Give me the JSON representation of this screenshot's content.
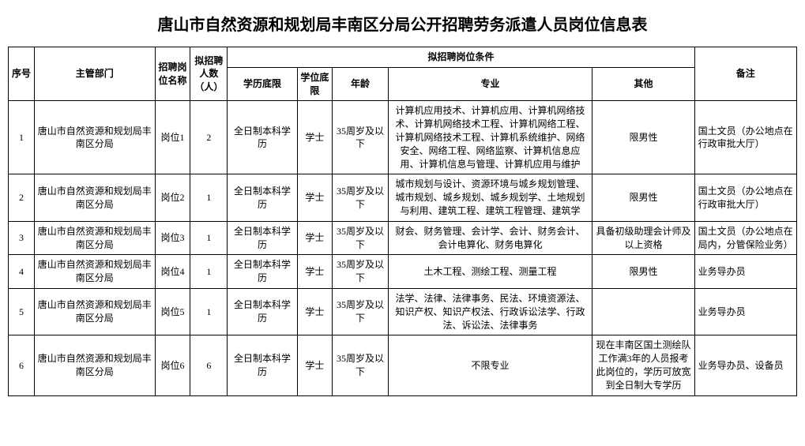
{
  "title": "唐山市自然资源和规划局丰南区分局公开招聘劳务派遣人员岗位信息表",
  "headers": {
    "seq": "序号",
    "dept": "主管部门",
    "position": "招聘岗位名称",
    "count": "拟招聘人数（人）",
    "condGroup": "拟招聘岗位条件",
    "edu": "学历底限",
    "degree": "学位底限",
    "age": "年龄",
    "major": "专业",
    "other": "其他",
    "remark": "备注"
  },
  "rows": [
    {
      "seq": "1",
      "dept": "唐山市自然资源和规划局丰南区分局",
      "position": "岗位1",
      "count": "2",
      "edu": "全日制本科学历",
      "degree": "学士",
      "age": "35周岁及以下",
      "major": "计算机应用技术、计算机应用、计算机网络技术、计算机网络技术工程、计算机网络工程、计算机网络技术工程、计算机系统维护、网络安全、网络工程、网络监察、计算机信息应用、计算机信息与管理、计算机应用与维护",
      "other": "限男性",
      "remark": "国土文员（办公地点在行政审批大厅）"
    },
    {
      "seq": "2",
      "dept": "唐山市自然资源和规划局丰南区分局",
      "position": "岗位2",
      "count": "1",
      "edu": "全日制本科学历",
      "degree": "学士",
      "age": "35周岁及以下",
      "major": "城市规划与设计、资源环境与城乡规划管理、城市规划、城乡规划、城乡规划学、土地规划与利用、建筑工程、建筑工程管理、建筑学",
      "other": "限男性",
      "remark": "国土文员（办公地点在行政审批大厅）"
    },
    {
      "seq": "3",
      "dept": "唐山市自然资源和规划局丰南区分局",
      "position": "岗位3",
      "count": "1",
      "edu": "全日制本科学历",
      "degree": "学士",
      "age": "35周岁及以下",
      "major": "财会、财务管理、会计学、会计、财务会计、会计电算化、财务电算化",
      "other": "具备初级助理会计师及以上资格",
      "remark": "国土文员（办公地点在局内，分管保险业务）"
    },
    {
      "seq": "4",
      "dept": "唐山市自然资源和规划局丰南区分局",
      "position": "岗位4",
      "count": "1",
      "edu": "全日制本科学历",
      "degree": "学士",
      "age": "35周岁及以下",
      "major": "土木工程、测绘工程、测量工程",
      "other": "限男性",
      "remark": "业务导办员"
    },
    {
      "seq": "5",
      "dept": "唐山市自然资源和规划局丰南区分局",
      "position": "岗位5",
      "count": "1",
      "edu": "全日制本科学历",
      "degree": "学士",
      "age": "35周岁及以下",
      "major": "法学、法律、法律事务、民法、环境资源法、知识产权、知识产权法、行政诉讼法学、行政法、诉讼法、法律事务",
      "other": "",
      "remark": "业务导办员"
    },
    {
      "seq": "6",
      "dept": "唐山市自然资源和规划局丰南区分局",
      "position": "岗位6",
      "count": "6",
      "edu": "全日制本科学历",
      "degree": "学士",
      "age": "35周岁及以下",
      "major": "不限专业",
      "other": "现在丰南区国土测绘队工作满3年的人员报考此岗位的，学历可放宽到全日制大专学历",
      "remark": "业务导办员、设备员"
    }
  ]
}
